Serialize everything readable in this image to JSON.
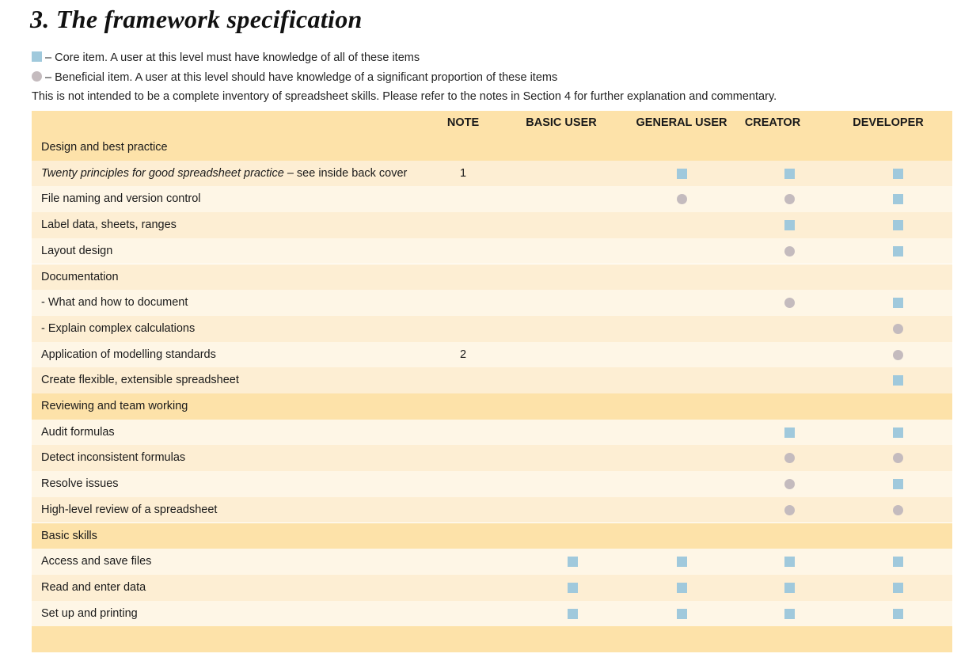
{
  "title": "3. The framework specification",
  "legend": {
    "core": "– Core item.  A user at this level must have knowledge of all of these items",
    "beneficial": "– Beneficial item.  A user at this level should have knowledge of a significant proportion of these items",
    "note": "This is not intended to be a complete inventory of spreadsheet skills.  Please refer to the notes in Section 4 for further explanation and commentary."
  },
  "colors": {
    "core": "#a0c9dc",
    "beneficial": "#c4bbbe",
    "header": "#fde2a9"
  },
  "table": {
    "columns": [
      "NOTE",
      "BASIC USER",
      "GENERAL USER",
      "CREATOR",
      "DEVELOPER"
    ],
    "rows": [
      {
        "type": "section",
        "label": "Design and best practice"
      },
      {
        "label": "Twenty principles for good spreadsheet practice",
        "label_suffix": " – see inside back cover",
        "italic": true,
        "note": "1",
        "marks": [
          "",
          "core",
          "core",
          "core"
        ]
      },
      {
        "label": "File naming and version control",
        "marks": [
          "",
          "beneficial",
          "beneficial",
          "core"
        ]
      },
      {
        "label": "Label data, sheets, ranges",
        "marks": [
          "",
          "",
          "core",
          "core"
        ]
      },
      {
        "label": "Layout design",
        "marks": [
          "",
          "",
          "beneficial",
          "core"
        ]
      },
      {
        "label": "Documentation",
        "marks": [
          "",
          "",
          "",
          ""
        ]
      },
      {
        "label": "- What and how to document",
        "marks": [
          "",
          "",
          "beneficial",
          "core"
        ]
      },
      {
        "label": "- Explain complex calculations",
        "marks": [
          "",
          "",
          "",
          "beneficial"
        ]
      },
      {
        "label": "Application of modelling standards",
        "note": "2",
        "marks": [
          "",
          "",
          "",
          "beneficial"
        ]
      },
      {
        "label": "Create flexible, extensible spreadsheet",
        "marks": [
          "",
          "",
          "",
          "core"
        ]
      },
      {
        "type": "section",
        "label": "Reviewing and team working"
      },
      {
        "label": "Audit formulas",
        "marks": [
          "",
          "",
          "core",
          "core"
        ]
      },
      {
        "label": "Detect inconsistent formulas",
        "marks": [
          "",
          "",
          "beneficial",
          "beneficial"
        ]
      },
      {
        "label": "Resolve issues",
        "marks": [
          "",
          "",
          "beneficial",
          "core"
        ]
      },
      {
        "label": "High-level review of a spreadsheet",
        "marks": [
          "",
          "",
          "beneficial",
          "beneficial"
        ]
      },
      {
        "type": "section",
        "label": "Basic skills"
      },
      {
        "label": "Access and save files",
        "marks": [
          "core",
          "core",
          "core",
          "core"
        ]
      },
      {
        "label": "Read and enter data",
        "marks": [
          "core",
          "core",
          "core",
          "core"
        ]
      },
      {
        "label": "Set up and printing",
        "marks": [
          "core",
          "core",
          "core",
          "core"
        ]
      },
      {
        "type": "section",
        "label": ""
      }
    ]
  }
}
